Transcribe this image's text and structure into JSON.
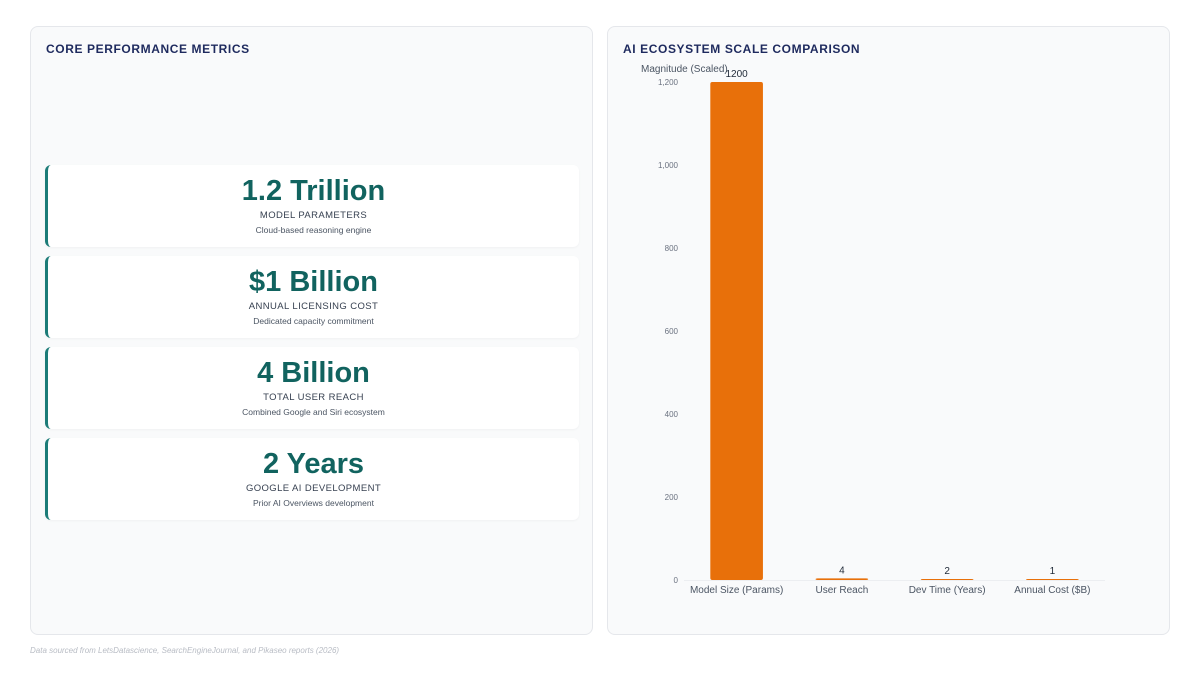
{
  "left_panel": {
    "title": "CORE PERFORMANCE METRICS",
    "metrics": [
      {
        "value": "1.2 Trillion",
        "label": "MODEL PARAMETERS",
        "desc": "Cloud-based reasoning engine"
      },
      {
        "value": "$1 Billion",
        "label": "ANNUAL LICENSING COST",
        "desc": "Dedicated capacity commitment"
      },
      {
        "value": "4 Billion",
        "label": "TOTAL USER REACH",
        "desc": "Combined Google and Siri ecosystem"
      },
      {
        "value": "2 Years",
        "label": "GOOGLE AI DEVELOPMENT",
        "desc": "Prior AI Overviews development"
      }
    ]
  },
  "right_panel": {
    "title": "AI ECOSYSTEM SCALE COMPARISON"
  },
  "chart_data": {
    "type": "bar",
    "title": "",
    "xlabel": "",
    "ylabel": "Magnitude (Scaled)",
    "categories": [
      "Model Size (Params)",
      "User Reach",
      "Dev Time (Years)",
      "Annual Cost ($B)"
    ],
    "values": [
      1200,
      4,
      2,
      1
    ],
    "data_labels": [
      "1200",
      "4",
      "2",
      "1"
    ],
    "ylim": [
      0,
      1200
    ],
    "yticks": [
      0,
      200,
      400,
      600,
      800,
      1000,
      1200
    ],
    "ytick_labels": [
      "0",
      "200",
      "400",
      "600",
      "800",
      "1,000",
      "1,200"
    ],
    "bar_color": "#e8700a",
    "grid": false,
    "legend": "none"
  },
  "footer": {
    "source": "Data sourced from LetsDatascience, SearchEngineJournal, and Pikaseo reports (2026)"
  }
}
